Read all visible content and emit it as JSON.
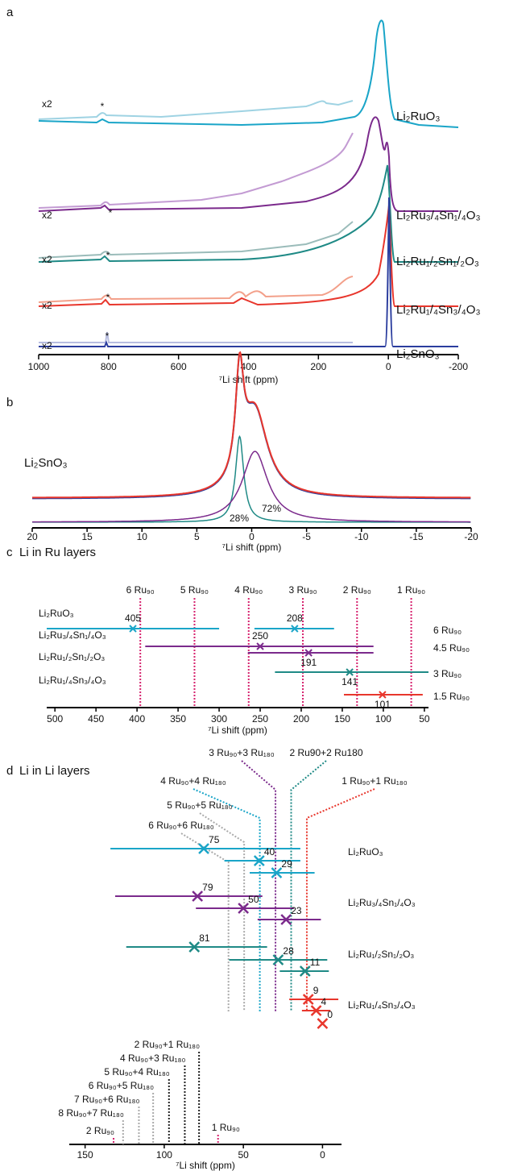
{
  "chart_data": [
    {
      "type": "spectra",
      "label": "a",
      "xlabel": "⁷Li shift (ppm)",
      "xlim": [
        1000,
        -200
      ],
      "xticks": [
        1000,
        800,
        600,
        400,
        200,
        0,
        -200
      ],
      "scale_label": "x2",
      "marker": "*",
      "series": [
        {
          "name": "Li₂RuO₃",
          "color": "#1aa5c8",
          "scaled_color": "#9fd3e3"
        },
        {
          "name": "Li₂Ru₃/₄Sn₁/₄O₃",
          "color": "#7b2a8c",
          "scaled_color": "#c39bd3"
        },
        {
          "name": "Li₂Ru₁/₂Sn₁/₂O₃",
          "color": "#1f8a86",
          "scaled_color": "#9bbcba"
        },
        {
          "name": "Li₂Ru₁/₄Sn₃/₄O₃",
          "color": "#e8362c",
          "scaled_color": "#f3a08a"
        },
        {
          "name": "Li₂SnO₃",
          "color": "#2b3d9e",
          "scaled_color": "#b7bde0"
        }
      ]
    },
    {
      "type": "components",
      "label": "b",
      "title": "Li₂SnO₃",
      "xlabel": "⁷Li shift (ppm)",
      "xlim": [
        20,
        -20
      ],
      "xticks": [
        20,
        15,
        10,
        5,
        0,
        -5,
        -10,
        -15,
        -20
      ],
      "color": "#e8362c",
      "components": {
        "colors": [
          "#1f8a86",
          "#7b2a8c"
        ],
        "centers": [
          1.1,
          -0.3
        ],
        "values": [
          28,
          72
        ],
        "value_labels": [
          "28%",
          "72%"
        ]
      }
    },
    {
      "type": "errorbar",
      "label": "c",
      "title": "Li in Ru layers",
      "xlabel": "⁷Li shift (ppm)",
      "xlim": [
        510,
        45
      ],
      "xticks": [
        500,
        450,
        400,
        350,
        300,
        250,
        200,
        150,
        100,
        50
      ],
      "ref_lines": [
        {
          "label": "6 Ru₉₀",
          "value": 396,
          "color": "#d6226e"
        },
        {
          "label": "5 Ru₉₀",
          "value": 330,
          "color": "#d6226e"
        },
        {
          "label": "4 Ru₉₀",
          "value": 264,
          "color": "#d6226e"
        },
        {
          "label": "3 Ru₉₀",
          "value": 198,
          "color": "#d6226e"
        },
        {
          "label": "2 Ru₉₀",
          "value": 132,
          "color": "#d6226e"
        },
        {
          "label": "1 Ru₉₀",
          "value": 66,
          "color": "#d6226e"
        }
      ],
      "rows": [
        {
          "name": "Li₂RuO₃",
          "color": "#1aa5c8",
          "ru_label": "6 Ru₉₀",
          "points": [
            {
              "value": 405,
              "range": [
                510,
                300
              ]
            },
            {
              "value": 208,
              "range": [
                257,
                160
              ]
            }
          ]
        },
        {
          "name": "Li₂Ru₃/₄Sn₁/₄O₃",
          "color": "#7b2a8c",
          "ru_label": "4.5 Ru₉₀",
          "points": [
            {
              "value": 250,
              "range": [
                390,
                112
              ]
            },
            {
              "value": 191,
              "range": [
                265,
                112
              ]
            }
          ]
        },
        {
          "name": "Li₂Ru₁/₂Sn₁/₂O₃",
          "color": "#1f8a86",
          "ru_label": "3 Ru₉₀",
          "points": [
            {
              "value": 141,
              "range": [
                232,
                45
              ]
            }
          ]
        },
        {
          "name": "Li₂Ru₁/₄Sn₃/₄O₃",
          "color": "#e8362c",
          "ru_label": "1.5 Ru₉₀",
          "points": [
            {
              "value": 101,
              "range": [
                148,
                52
              ]
            }
          ]
        }
      ]
    },
    {
      "type": "errorbar",
      "label": "d",
      "title": "Li in Li layers",
      "xlabel": "⁷Li shift (ppm)",
      "xlim": [
        160,
        -12
      ],
      "xticks": [
        150,
        100,
        50,
        0
      ],
      "ref_lines": [
        {
          "label": "3 Ru₉₀+3 Ru₁₈₀",
          "value": 29.7,
          "color": "#7b2a8c"
        },
        {
          "label": "2 Ru90+2 Ru180",
          "value": 19.8,
          "color": "#1f8a86"
        },
        {
          "label": "4 Ru₉₀+4 Ru₁₈₀",
          "value": 39.6,
          "color": "#1aa5c8"
        },
        {
          "label": "1 Ru₉₀+1 Ru₁₈₀",
          "value": 9.9,
          "color": "#e8362c"
        },
        {
          "label": "5 Ru₉₀+5 Ru₁₈₀",
          "value": 49.5,
          "color": "#aaaaaa"
        },
        {
          "label": "6 Ru₉₀+6 Ru₁₈₀",
          "value": 59.4,
          "color": "#aaaaaa"
        }
      ],
      "lower_ref_lines": [
        {
          "label": "2 Ru₉₀+1 Ru₁₈₀",
          "value": 78,
          "color": "#222222"
        },
        {
          "label": "4 Ru₉₀+3 Ru₁₈₀",
          "value": 87,
          "color": "#222222"
        },
        {
          "label": "5 Ru₉₀+4 Ru₁₈₀",
          "value": 97,
          "color": "#222222"
        },
        {
          "label": "6 Ru₉₀+5 Ru₁₈₀",
          "value": 107,
          "color": "#aaaaaa"
        },
        {
          "label": "7 Ru₉₀+6 Ru₁₈₀",
          "value": 116,
          "color": "#aaaaaa"
        },
        {
          "label": "8 Ru₉₀+7 Ru₁₈₀",
          "value": 126,
          "color": "#aaaaaa"
        },
        {
          "label": "2 Ru₉₀",
          "value": 132,
          "color": "#d6226e"
        },
        {
          "label": "1 Ru₉₀",
          "value": 66,
          "color": "#d6226e"
        }
      ],
      "rows": [
        {
          "name": "Li₂RuO₃",
          "color": "#1aa5c8",
          "points": [
            {
              "value": 75,
              "range": [
                134,
                14
              ]
            },
            {
              "value": 40,
              "range": [
                62,
                14
              ]
            },
            {
              "value": 29,
              "range": [
                46,
                5
              ]
            }
          ]
        },
        {
          "name": "Li₂Ru₃/₄Sn₁/₄O₃",
          "color": "#7b2a8c",
          "points": [
            {
              "value": 79,
              "range": [
                131,
                38
              ]
            },
            {
              "value": 50,
              "range": [
                80,
                18
              ]
            },
            {
              "value": 23,
              "range": [
                41,
                1
              ]
            }
          ]
        },
        {
          "name": "Li₂Ru₁/₂Sn₁/₂O₃",
          "color": "#1f8a86",
          "points": [
            {
              "value": 81,
              "range": [
                124,
                35
              ]
            },
            {
              "value": 28,
              "range": [
                59,
                -3
              ]
            },
            {
              "value": 11,
              "range": [
                27,
                -4
              ]
            }
          ]
        },
        {
          "name": "Li₂Ru₁/₄Sn₃/₄O₃",
          "color": "#e8362c",
          "points": [
            {
              "value": 9,
              "range": [
                21,
                -10
              ]
            },
            {
              "value": 4,
              "range": [
                13,
                -5
              ]
            },
            {
              "value": 0
            }
          ]
        }
      ]
    }
  ]
}
